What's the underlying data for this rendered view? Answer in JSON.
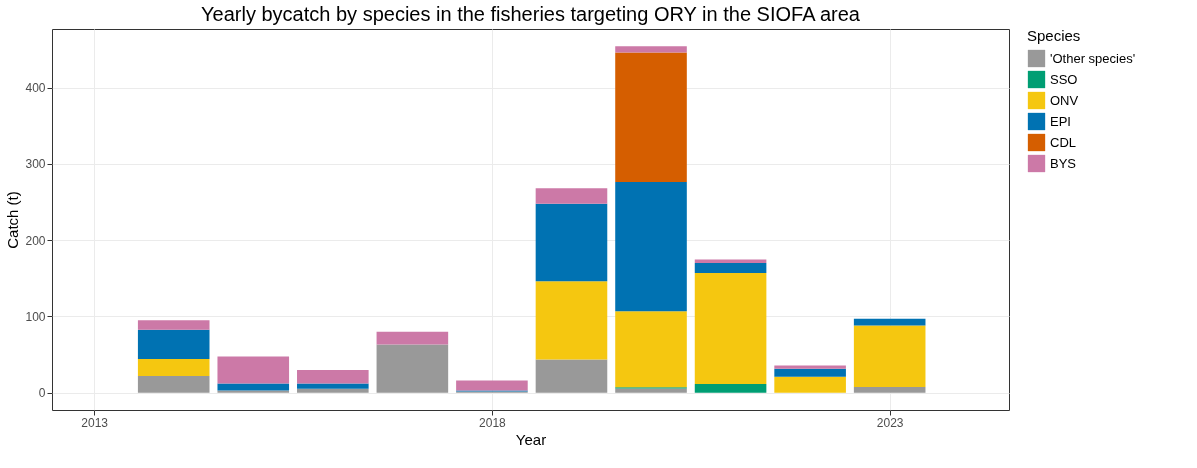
{
  "chart_data": {
    "type": "bar",
    "title": "Yearly bycatch by species in the fisheries targeting ORY in the SIOFA area",
    "xlabel": "Year",
    "ylabel": "Catch (t)",
    "legend_title": "Species",
    "stacked": true,
    "x": [
      2014,
      2015,
      2016,
      2017,
      2018,
      2019,
      2020,
      2021,
      2022,
      2023
    ],
    "series": [
      {
        "name": "'Other species'",
        "color": "#999999",
        "values": [
          22,
          3,
          5,
          63,
          1.5,
          43.5,
          5.5,
          null,
          null,
          7.5
        ]
      },
      {
        "name": "SSO",
        "color": "#009E73",
        "values": [
          null,
          null,
          null,
          null,
          null,
          null,
          1.5,
          11.4,
          null,
          null
        ]
      },
      {
        "name": "ONV",
        "color": "#F5C710",
        "values": [
          22,
          null,
          null,
          null,
          null,
          102.5,
          99.7,
          145.6,
          21,
          80.5
        ]
      },
      {
        "name": "EPI",
        "color": "#0072B2",
        "values": [
          38.5,
          9,
          7,
          null,
          1.5,
          101.8,
          169.3,
          13,
          10.4,
          8.8
        ]
      },
      {
        "name": "CDL",
        "color": "#D55E00",
        "values": [
          null,
          null,
          null,
          null,
          null,
          null,
          170,
          null,
          null,
          null
        ]
      },
      {
        "name": "BYS",
        "color": "#CC79A7",
        "values": [
          12.6,
          35.4,
          17.6,
          17,
          13,
          20,
          8,
          4.7,
          4.3,
          null
        ]
      }
    ],
    "xlim": [
      2012.47,
      2024.5
    ],
    "xticks": [
      2013,
      2018,
      2023
    ],
    "ylim": [
      -22.7,
      476.7
    ],
    "yticks": [
      0,
      100,
      200,
      300,
      400
    ],
    "grid": true,
    "legend": "right"
  }
}
